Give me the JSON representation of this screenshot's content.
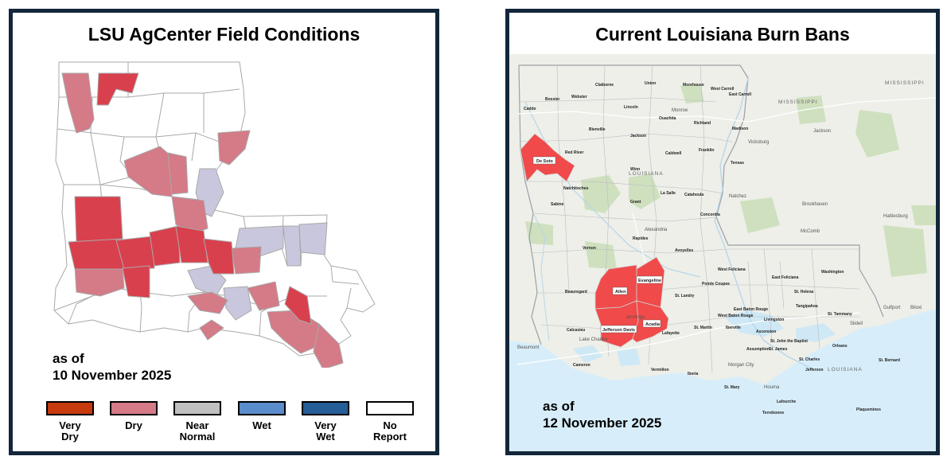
{
  "left_panel": {
    "title": "LSU AgCenter Field Conditions",
    "as_of_line1": "as of",
    "as_of_line2": "10 November 2025",
    "legend": [
      {
        "label_line1": "Very",
        "label_line2": "Dry",
        "color": "#c63a0e"
      },
      {
        "label_line1": "Dry",
        "label_line2": "",
        "color": "#d57a87"
      },
      {
        "label_line1": "Near",
        "label_line2": "Normal",
        "color": "#c0c0c0"
      },
      {
        "label_line1": "Wet",
        "label_line2": "",
        "color": "#5b8ccb"
      },
      {
        "label_line1": "Very",
        "label_line2": "Wet",
        "color": "#255d96"
      },
      {
        "label_line1": "No",
        "label_line2": "Report",
        "color": "#ffffff"
      }
    ],
    "map_colors": {
      "very_dry_fill": "#d9404d",
      "dry_fill": "#d57a87",
      "near_normal_fill": "#c9c7dd",
      "no_report_fill": "#ffffff",
      "border": "#a9a9a9"
    }
  },
  "right_panel": {
    "title": "Current Louisiana Burn Bans",
    "as_of_line1": "as of",
    "as_of_line2": "12 November 2025",
    "burn_ban_color": "#f04a4a",
    "parish_labels": [
      "De Soto",
      "Allen",
      "Evangeline",
      "Jefferson Davis",
      "Acadia",
      "Red River",
      "Caddo",
      "Bossier",
      "Webster",
      "Claiborne",
      "Union",
      "Morehouse",
      "West Carroll",
      "East Carroll",
      "Lincoln",
      "Ouachita",
      "Richland",
      "Madison",
      "Bienville",
      "Jackson",
      "Caldwell",
      "Franklin",
      "Tensas",
      "Winn",
      "Natchitoches",
      "Sabine",
      "Grant",
      "La Salle",
      "Catahoula",
      "Concordia",
      "Rapides",
      "Avoyelles",
      "Vernon",
      "Beauregard",
      "Calcasieu",
      "Cameron",
      "Vermilion",
      "Lafayette",
      "St. Landry",
      "Pointe Coupee",
      "West Feliciana",
      "East Feliciana",
      "St. Helena",
      "Washington",
      "Tangipahoa",
      "St. Tammany",
      "East Baton Rouge",
      "West Baton Rouge",
      "Iberville",
      "Ascension",
      "Livingston",
      "St. Martin",
      "Iberia",
      "St. Mary",
      "Assumption",
      "Lafourche",
      "Terrebonne",
      "St. James",
      "St. John the Baptist",
      "St. Charles",
      "Jefferson",
      "Orleans",
      "St. Bernard",
      "Plaquemines",
      "Lake Charles",
      "Beaumont",
      "Jackson",
      "Brookhaven",
      "McComb",
      "Hattiesburg",
      "Gulfport",
      "Biloxi",
      "Vicksburg",
      "Natchez",
      "Alexandria",
      "Monroe",
      "Houma",
      "LOUISIANA",
      "MISSISSIPPI",
      "Slidell",
      "Morgan City",
      "Jennings"
    ],
    "map_colors": {
      "land": "#eeefe9",
      "forest": "#cfe0bf",
      "water": "#cfe8f5",
      "gulf": "#d7eefa"
    }
  }
}
